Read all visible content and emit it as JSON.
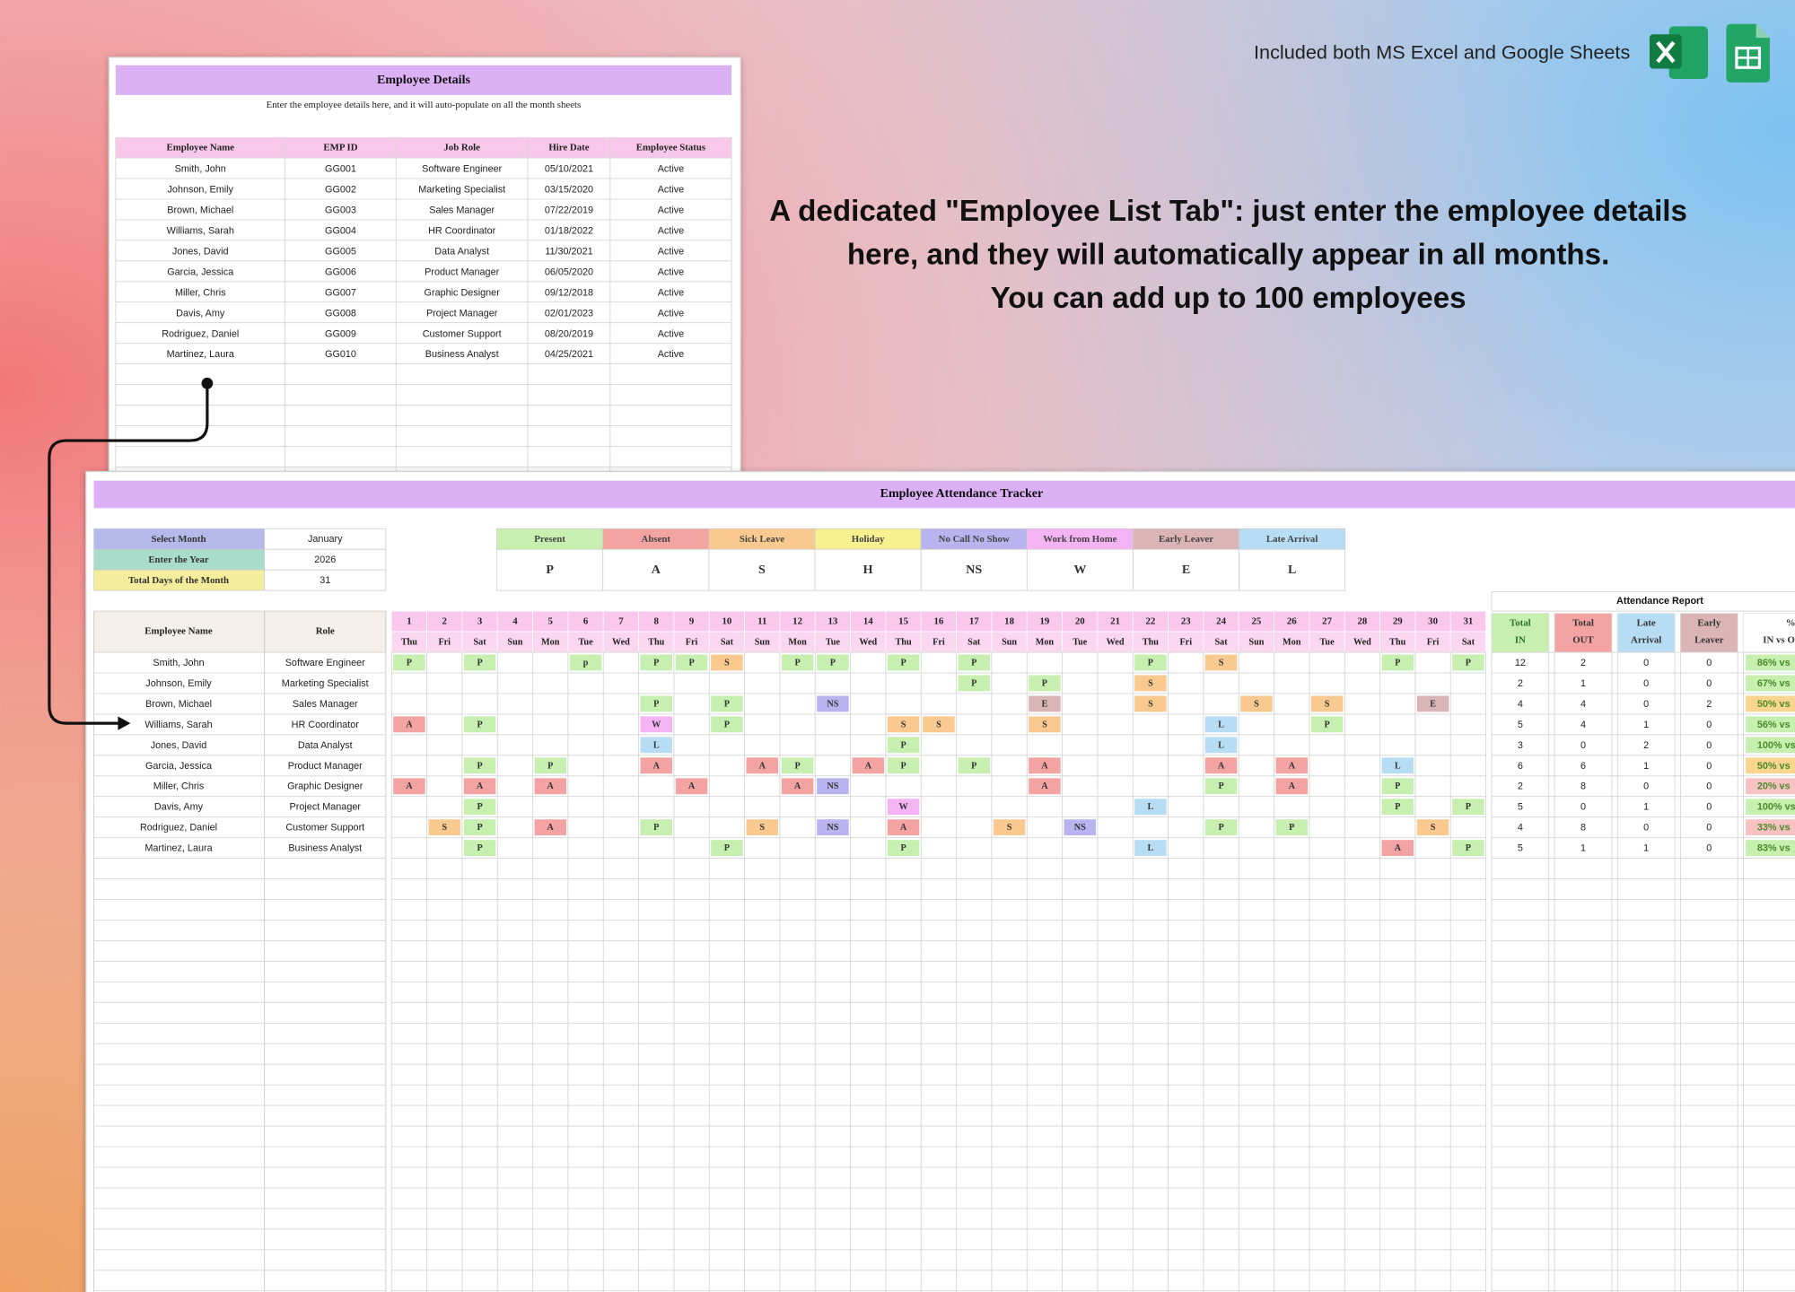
{
  "header": {
    "tagline": "Included both MS Excel and Google Sheets",
    "headline": [
      "A dedicated \"Employee List Tab\": just enter the employee details",
      "here, and they will automatically appear in all months.",
      "You can add up to 100 employees"
    ]
  },
  "employee_details": {
    "title": "Employee Details",
    "subtitle": "Enter the employee details here, and it will auto-populate on all the month sheets",
    "columns": [
      "Employee Name",
      "EMP ID",
      "Job Role",
      "Hire Date",
      "Employee Status"
    ],
    "rows": [
      [
        "Smith, John",
        "GG001",
        "Software Engineer",
        "05/10/2021",
        "Active"
      ],
      [
        "Johnson, Emily",
        "GG002",
        "Marketing Specialist",
        "03/15/2020",
        "Active"
      ],
      [
        "Brown, Michael",
        "GG003",
        "Sales Manager",
        "07/22/2019",
        "Active"
      ],
      [
        "Williams, Sarah",
        "GG004",
        "HR Coordinator",
        "01/18/2022",
        "Active"
      ],
      [
        "Jones, David",
        "GG005",
        "Data Analyst",
        "11/30/2021",
        "Active"
      ],
      [
        "Garcia, Jessica",
        "GG006",
        "Product Manager",
        "06/05/2020",
        "Active"
      ],
      [
        "Miller, Chris",
        "GG007",
        "Graphic Designer",
        "09/12/2018",
        "Active"
      ],
      [
        "Davis, Amy",
        "GG008",
        "Project Manager",
        "02/01/2023",
        "Active"
      ],
      [
        "Rodriguez, Daniel",
        "GG009",
        "Customer Support",
        "08/20/2019",
        "Active"
      ],
      [
        "Martinez, Laura",
        "GG010",
        "Business Analyst",
        "04/25/2021",
        "Active"
      ]
    ]
  },
  "tracker": {
    "title": "Employee Attendance Tracker",
    "settings": [
      {
        "label": "Select Month",
        "value": "January",
        "color": "#b4b9e9"
      },
      {
        "label": "Enter the Year",
        "value": 2026,
        "color": "#a9dccb"
      },
      {
        "label": "Total Days of the Month",
        "value": 31,
        "color": "#f4ed9c"
      }
    ],
    "legend": [
      {
        "label": "Present",
        "code": "P",
        "color": "#c6efb0"
      },
      {
        "label": "Absent",
        "code": "A",
        "color": "#f4a3a3"
      },
      {
        "label": "Sick Leave",
        "code": "S",
        "color": "#f9c98f"
      },
      {
        "label": "Holiday",
        "code": "H",
        "color": "#f7f08f"
      },
      {
        "label": "No Call No Show",
        "code": "NS",
        "color": "#b9b3f0"
      },
      {
        "label": "Work from Home",
        "code": "W",
        "color": "#f4b3f2"
      },
      {
        "label": "Early Leaver",
        "code": "E",
        "color": "#dbb5b5"
      },
      {
        "label": "Late Arrival",
        "code": "L",
        "color": "#b7ddf5"
      }
    ],
    "columns": [
      "Employee Name",
      "Role"
    ],
    "days": [
      1,
      2,
      3,
      4,
      5,
      6,
      7,
      8,
      9,
      10,
      11,
      12,
      13,
      14,
      15,
      16,
      17,
      18,
      19,
      20,
      21,
      22,
      23,
      24,
      25,
      26,
      27,
      28,
      29,
      30,
      31
    ],
    "weekdays": [
      "Thu",
      "Fri",
      "Sat",
      "Sun",
      "Mon",
      "Tue",
      "Wed",
      "Thu",
      "Fri",
      "Sat",
      "Sun",
      "Mon",
      "Tue",
      "Wed",
      "Thu",
      "Fri",
      "Sat",
      "Sun",
      "Mon",
      "Tue",
      "Wed",
      "Thu",
      "Fri",
      "Sat",
      "Sun",
      "Mon",
      "Tue",
      "Wed",
      "Thu",
      "Fri",
      "Sat"
    ],
    "report": {
      "title": "Attendance Report",
      "columns": [
        {
          "label": [
            "Total",
            "IN"
          ],
          "color": "#c6efb0"
        },
        {
          "label": [
            "Total",
            "OUT"
          ],
          "color": "#f4a3a3"
        },
        {
          "label": [
            "Late",
            "Arrival"
          ],
          "color": "#b7ddf5"
        },
        {
          "label": [
            "Early",
            "Leaver"
          ],
          "color": "#dbb5b5"
        },
        {
          "label": [
            "%",
            "IN vs O"
          ],
          "color": "#ffffff"
        }
      ]
    },
    "rows": [
      {
        "name": "Smith, John",
        "role": "Software Engineer",
        "marks": [
          "P",
          null,
          "P",
          null,
          null,
          "p",
          null,
          "P",
          "P",
          "S",
          null,
          "P",
          "P",
          null,
          "P",
          null,
          "P",
          null,
          null,
          null,
          null,
          "P",
          null,
          "S",
          null,
          null,
          null,
          null,
          "P",
          null,
          "P"
        ],
        "totals": [
          12,
          2,
          0,
          0,
          "86% vs"
        ],
        "pct_color": "#c6efb0"
      },
      {
        "name": "Johnson, Emily",
        "role": "Marketing Specialist",
        "marks": [
          null,
          null,
          null,
          null,
          null,
          null,
          null,
          null,
          null,
          null,
          null,
          null,
          null,
          null,
          null,
          null,
          "P",
          null,
          "P",
          null,
          null,
          "S",
          null,
          null,
          null,
          null,
          null,
          null,
          null,
          null,
          null
        ],
        "totals": [
          2,
          1,
          0,
          0,
          "67% vs"
        ],
        "pct_color": "#c6efb0"
      },
      {
        "name": "Brown, Michael",
        "role": "Sales Manager",
        "marks": [
          null,
          null,
          null,
          null,
          null,
          null,
          null,
          "P",
          null,
          "P",
          null,
          null,
          "NS",
          null,
          null,
          null,
          null,
          null,
          "E",
          null,
          null,
          "S",
          null,
          null,
          "S",
          null,
          "S",
          null,
          null,
          "E",
          null
        ],
        "totals": [
          4,
          4,
          0,
          2,
          "50% vs"
        ],
        "pct_color": "#f9d58f"
      },
      {
        "name": "Williams, Sarah",
        "role": "HR Coordinator",
        "marks": [
          "A",
          null,
          "P",
          null,
          null,
          null,
          null,
          "W",
          null,
          "P",
          null,
          null,
          null,
          null,
          "S",
          "S",
          null,
          null,
          "S",
          null,
          null,
          null,
          null,
          "L",
          null,
          null,
          "P",
          null,
          null,
          null,
          null
        ],
        "totals": [
          5,
          4,
          1,
          0,
          "56% vs"
        ],
        "pct_color": "#c6efb0"
      },
      {
        "name": "Jones, David",
        "role": "Data Analyst",
        "marks": [
          null,
          null,
          null,
          null,
          null,
          null,
          null,
          "L",
          null,
          null,
          null,
          null,
          null,
          null,
          "P",
          null,
          null,
          null,
          null,
          null,
          null,
          null,
          null,
          "L",
          null,
          null,
          null,
          null,
          null,
          null,
          null
        ],
        "totals": [
          3,
          0,
          2,
          0,
          "100% vs"
        ],
        "pct_color": "#c6efb0"
      },
      {
        "name": "Garcia, Jessica",
        "role": "Product Manager",
        "marks": [
          null,
          null,
          "P",
          null,
          "P",
          null,
          null,
          "A",
          null,
          null,
          "A",
          "P",
          null,
          "A",
          "P",
          null,
          "P",
          null,
          "A",
          null,
          null,
          null,
          null,
          "A",
          null,
          "A",
          null,
          null,
          "L",
          null,
          null
        ],
        "totals": [
          6,
          6,
          1,
          0,
          "50% vs"
        ],
        "pct_color": "#f9d58f"
      },
      {
        "name": "Miller, Chris",
        "role": "Graphic Designer",
        "marks": [
          "A",
          null,
          "A",
          null,
          "A",
          null,
          null,
          null,
          "A",
          null,
          null,
          "A",
          "NS",
          null,
          null,
          null,
          null,
          null,
          "A",
          null,
          null,
          null,
          null,
          "P",
          null,
          "A",
          null,
          null,
          "P",
          null,
          null
        ],
        "totals": [
          2,
          8,
          0,
          0,
          "20% vs"
        ],
        "pct_color": "#f8c2c2"
      },
      {
        "name": "Davis, Amy",
        "role": "Project Manager",
        "marks": [
          null,
          null,
          "P",
          null,
          null,
          null,
          null,
          null,
          null,
          null,
          null,
          null,
          null,
          null,
          "W",
          null,
          null,
          null,
          null,
          null,
          null,
          "L",
          null,
          null,
          null,
          null,
          null,
          null,
          "P",
          null,
          "P"
        ],
        "totals": [
          5,
          0,
          1,
          0,
          "100% vs"
        ],
        "pct_color": "#c6efb0"
      },
      {
        "name": "Rodriguez, Daniel",
        "role": "Customer Support",
        "marks": [
          null,
          "S",
          "P",
          null,
          "A",
          null,
          null,
          "P",
          null,
          null,
          "S",
          null,
          "NS",
          null,
          "A",
          null,
          null,
          "S",
          null,
          "NS",
          null,
          null,
          null,
          "P",
          null,
          "P",
          null,
          null,
          null,
          "S",
          null
        ],
        "totals": [
          4,
          8,
          0,
          0,
          "33% vs"
        ],
        "pct_color": "#f8c2c2"
      },
      {
        "name": "Martinez, Laura",
        "role": "Business Analyst",
        "marks": [
          null,
          null,
          "P",
          null,
          null,
          null,
          null,
          null,
          null,
          "P",
          null,
          null,
          null,
          null,
          "P",
          null,
          null,
          null,
          null,
          null,
          null,
          "L",
          null,
          null,
          null,
          null,
          null,
          null,
          "A",
          null,
          "P"
        ],
        "totals": [
          5,
          1,
          1,
          0,
          "83% vs"
        ],
        "pct_color": "#c6efb0"
      }
    ]
  }
}
